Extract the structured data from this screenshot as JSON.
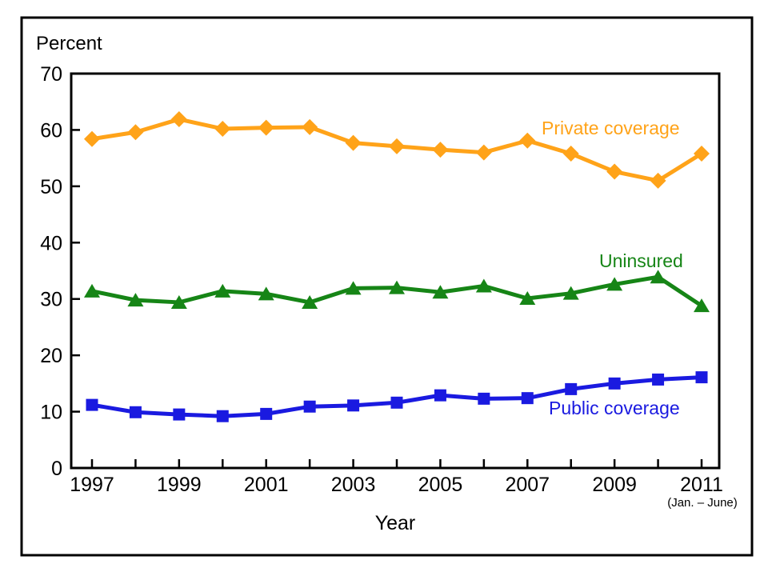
{
  "chart_data": {
    "type": "line",
    "title": "",
    "ylabel": "Percent",
    "xlabel": "Year",
    "x_note_last": "(Jan. – June)",
    "grid": false,
    "legend_position": "inline-labels",
    "x": [
      1997,
      1998,
      1999,
      2000,
      2001,
      2002,
      2003,
      2004,
      2005,
      2006,
      2007,
      2008,
      2009,
      2010,
      2011
    ],
    "xtick_label_years": [
      1997,
      1999,
      2001,
      2003,
      2005,
      2007,
      2009,
      2011
    ],
    "ylim": [
      0,
      70
    ],
    "yticks": [
      0,
      10,
      20,
      30,
      40,
      50,
      60,
      70
    ],
    "axis_color": "#000000",
    "series": [
      {
        "name": "Private coverage",
        "color": "#FFA319",
        "marker": "diamond",
        "values": [
          58.4,
          59.6,
          61.9,
          60.2,
          60.4,
          60.5,
          57.7,
          57.1,
          56.5,
          56.0,
          58.1,
          55.8,
          52.6,
          51.0,
          55.8
        ]
      },
      {
        "name": "Uninsured",
        "color": "#168516",
        "marker": "triangle",
        "values": [
          31.4,
          29.8,
          29.4,
          31.4,
          30.9,
          29.4,
          31.9,
          32.0,
          31.2,
          32.3,
          30.1,
          31.0,
          32.6,
          33.9,
          28.8
        ]
      },
      {
        "name": "Public coverage",
        "color": "#1A1AE0",
        "marker": "square",
        "values": [
          11.2,
          9.9,
          9.5,
          9.2,
          9.6,
          10.9,
          11.1,
          11.6,
          12.9,
          12.3,
          12.4,
          14.0,
          15.0,
          15.7,
          16.1
        ]
      }
    ]
  }
}
